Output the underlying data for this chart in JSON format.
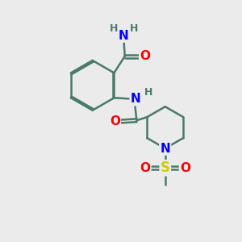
{
  "background_color": "#ebebeb",
  "bond_color": "#4a7a6a",
  "bond_width": 1.8,
  "atom_colors": {
    "N": "#0000ff",
    "O": "#ff0000",
    "S": "#cccc00",
    "H": "#4a7a6a",
    "C": "#4a7a6a"
  },
  "font_size": 11,
  "font_size_small": 9
}
